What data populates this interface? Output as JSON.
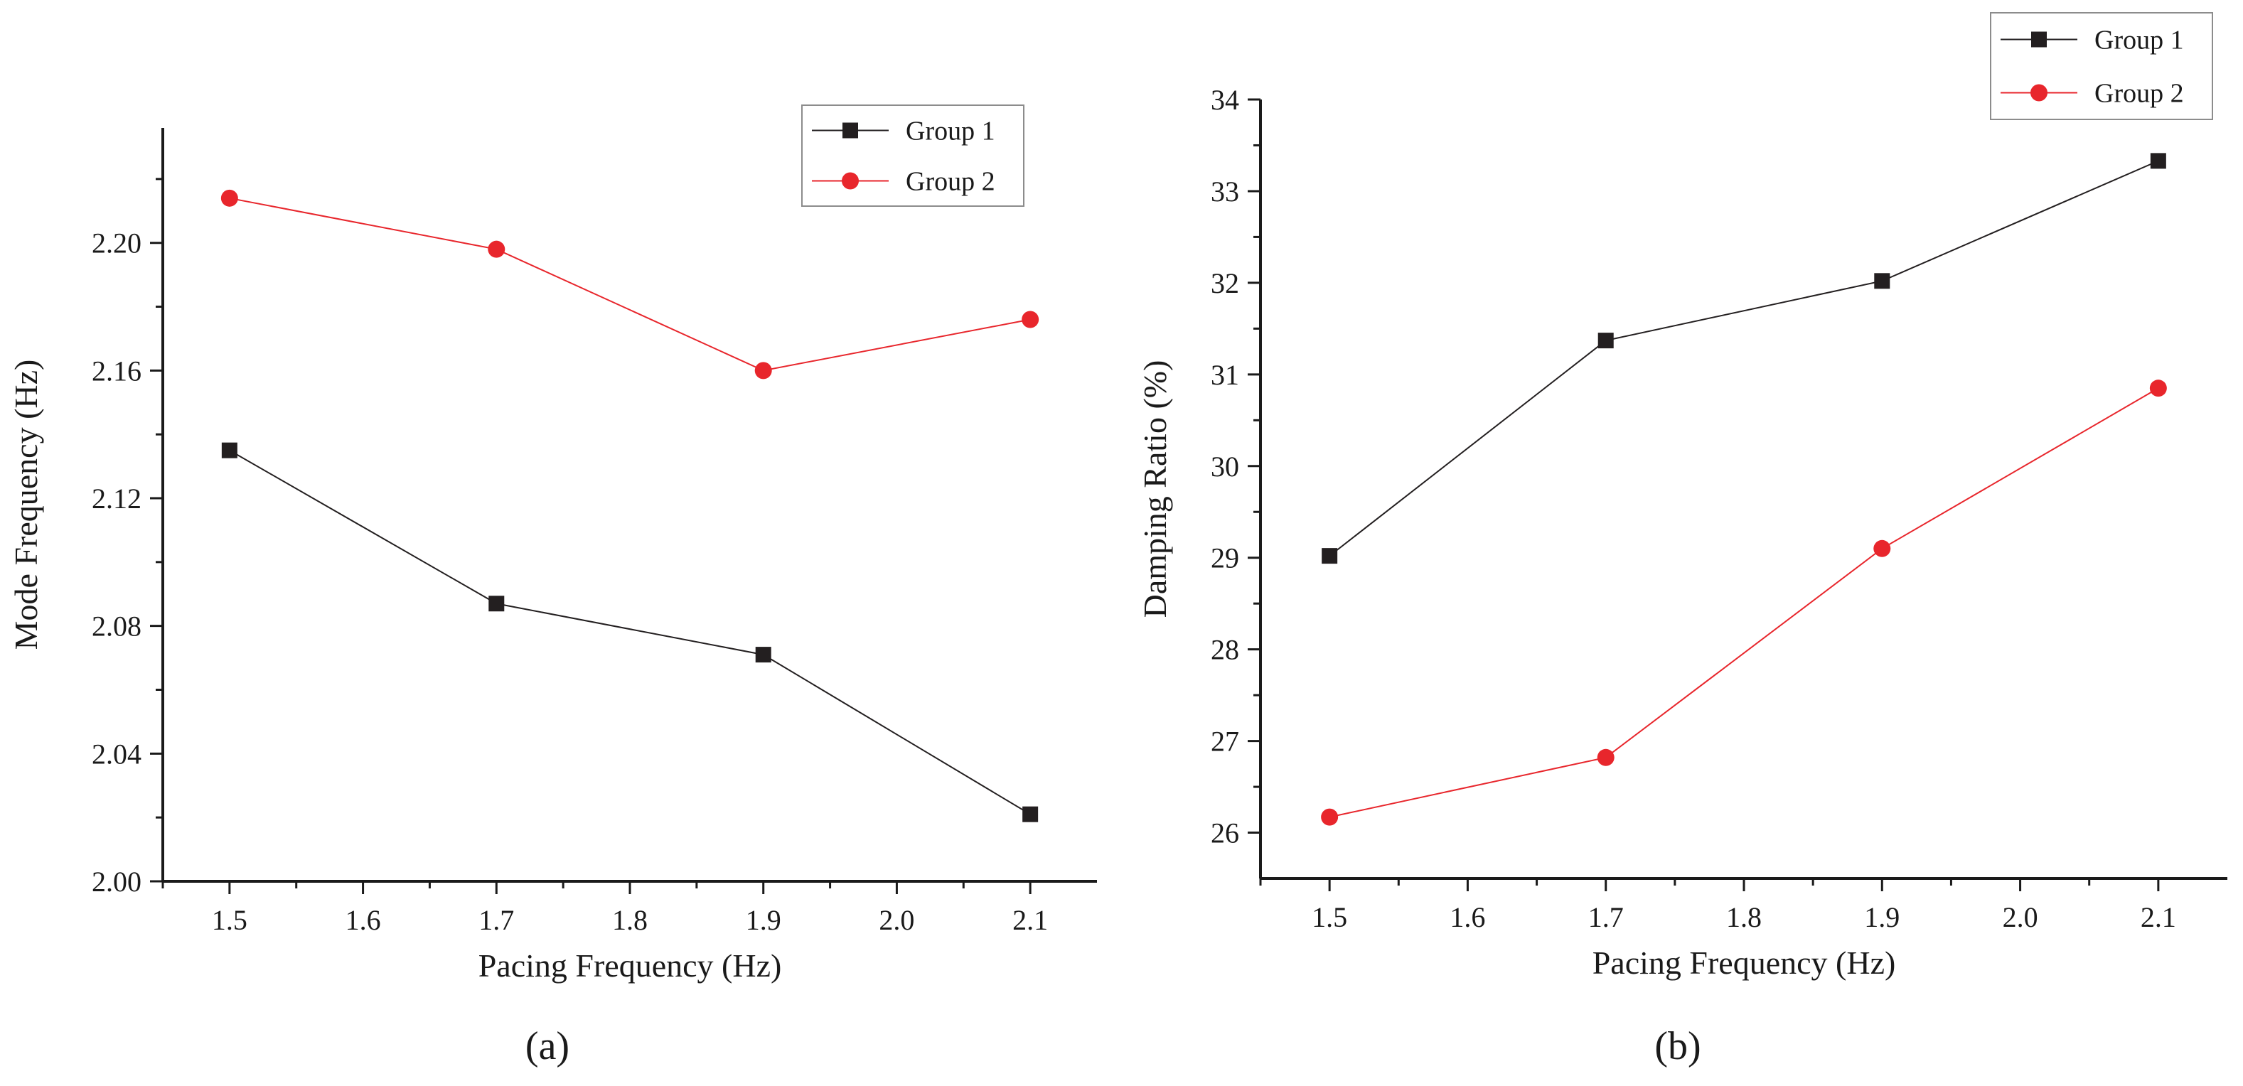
{
  "colors": {
    "group1": "#231f20",
    "group2": "#e8262c",
    "axis": "#1a1a1a",
    "legend_border": "#8c8c8c"
  },
  "chart_data": [
    {
      "type": "line",
      "panel_label": "(a)",
      "xlabel": "Pacing Frequency (Hz)",
      "ylabel": "Mode Frequency (Hz)",
      "xlim": [
        1.45,
        2.15
      ],
      "ylim": [
        2.0,
        2.236
      ],
      "xticks": [
        1.5,
        1.6,
        1.7,
        1.8,
        1.9,
        2.0,
        2.1
      ],
      "xtick_labels": [
        "1.5",
        "1.6",
        "1.7",
        "1.8",
        "1.9",
        "2.0",
        "2.1"
      ],
      "yticks": [
        2.0,
        2.04,
        2.08,
        2.12,
        2.16,
        2.2
      ],
      "ytick_labels": [
        "2.00",
        "2.04",
        "2.08",
        "2.12",
        "2.16",
        "2.20"
      ],
      "legend_position": "top-right",
      "series": [
        {
          "name": "Group 1",
          "marker": "square",
          "x": [
            1.5,
            1.7,
            1.9,
            2.1
          ],
          "values": [
            2.135,
            2.087,
            2.071,
            2.021
          ]
        },
        {
          "name": "Group 2",
          "marker": "circle",
          "x": [
            1.5,
            1.7,
            1.9,
            2.1
          ],
          "values": [
            2.214,
            2.198,
            2.16,
            2.176
          ]
        }
      ]
    },
    {
      "type": "line",
      "panel_label": "(b)",
      "xlabel": "Pacing Frequency (Hz)",
      "ylabel": "Damping Ratio  (%)",
      "xlim": [
        1.45,
        2.15
      ],
      "ylim": [
        25.5,
        34.0
      ],
      "xticks": [
        1.5,
        1.6,
        1.7,
        1.8,
        1.9,
        2.0,
        2.1
      ],
      "xtick_labels": [
        "1.5",
        "1.6",
        "1.7",
        "1.8",
        "1.9",
        "2.0",
        "2.1"
      ],
      "yticks": [
        26,
        27,
        28,
        29,
        30,
        31,
        32,
        33,
        34
      ],
      "ytick_labels": [
        "26",
        "27",
        "28",
        "29",
        "30",
        "31",
        "32",
        "33",
        "34"
      ],
      "legend_position": "top-right",
      "series": [
        {
          "name": "Group 1",
          "marker": "square",
          "x": [
            1.5,
            1.7,
            1.9,
            2.1
          ],
          "values": [
            29.02,
            31.37,
            32.02,
            33.33
          ]
        },
        {
          "name": "Group 2",
          "marker": "circle",
          "x": [
            1.5,
            1.7,
            1.9,
            2.1
          ],
          "values": [
            26.17,
            26.82,
            29.1,
            30.85
          ]
        }
      ]
    }
  ]
}
